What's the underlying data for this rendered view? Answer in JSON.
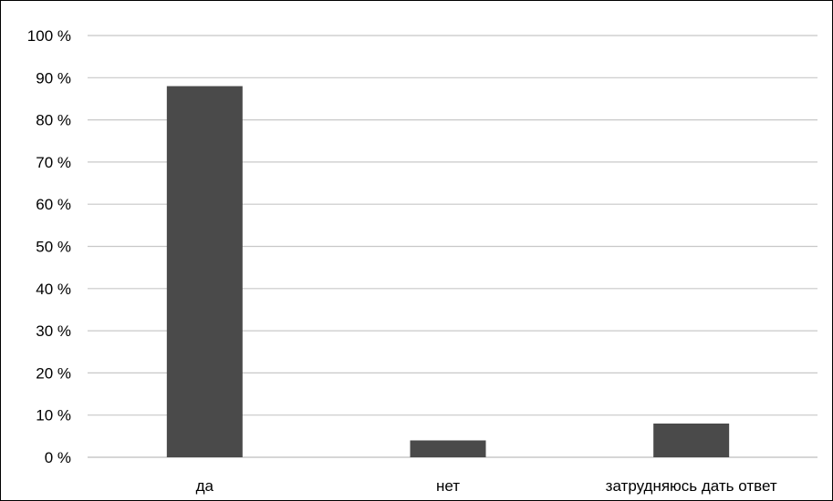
{
  "chart_data": {
    "type": "bar",
    "categories": [
      "да",
      "нет",
      "затрудняюсь дать ответ"
    ],
    "values": [
      88,
      4,
      8
    ],
    "value_unit": "%",
    "ylim": [
      0,
      100
    ],
    "y_ticks": [
      "0 %",
      "10 %",
      "20 %",
      "30 %",
      "40 %",
      "50 %",
      "60 %",
      "70 %",
      "80 %",
      "90 %",
      "100 %"
    ],
    "title": "",
    "xlabel": "",
    "ylabel": "",
    "grid": true,
    "legend": "none",
    "bar_color": "#4a4a4a",
    "grid_color": "#c8c8c8"
  }
}
